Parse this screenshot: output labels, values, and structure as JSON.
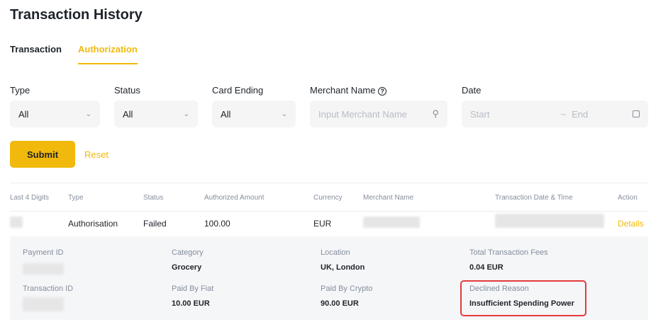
{
  "header": {
    "title": "Transaction History"
  },
  "tabs": [
    {
      "label": "Transaction",
      "active": false
    },
    {
      "label": "Authorization",
      "active": true
    }
  ],
  "filters": {
    "type": {
      "label": "Type",
      "value": "All"
    },
    "status": {
      "label": "Status",
      "value": "All"
    },
    "card_ending": {
      "label": "Card Ending",
      "value": "All"
    },
    "merchant": {
      "label": "Merchant Name",
      "placeholder": "Input Merchant Name"
    },
    "date": {
      "label": "Date",
      "start_placeholder": "Start",
      "separator": "~",
      "end_placeholder": "End"
    }
  },
  "actions": {
    "submit": "Submit",
    "reset": "Reset"
  },
  "table": {
    "columns": [
      "Last 4 Digits",
      "Type",
      "Status",
      "Authorized Amount",
      "Currency",
      "Merchant Name",
      "Transaction Date & Time",
      "Action"
    ],
    "row": {
      "type": "Authorisation",
      "status": "Failed",
      "amount": "100.00",
      "currency": "EUR",
      "action": "Details"
    }
  },
  "details": {
    "payment_id_label": "Payment ID",
    "category_label": "Category",
    "category": "Grocery",
    "location_label": "Location",
    "location": "UK, London",
    "fees_label": "Total Transaction Fees",
    "fees": "0.04 EUR",
    "transaction_id_label": "Transaction ID",
    "fiat_label": "Paid By Fiat",
    "fiat": "10.00 EUR",
    "crypto_label": "Paid By Crypto",
    "crypto": "90.00 EUR",
    "declined_label": "Declined Reason",
    "declined": "Insufficient Spending Power"
  },
  "colors": {
    "accent": "#f0b90b",
    "highlight": "#e33b3b"
  }
}
